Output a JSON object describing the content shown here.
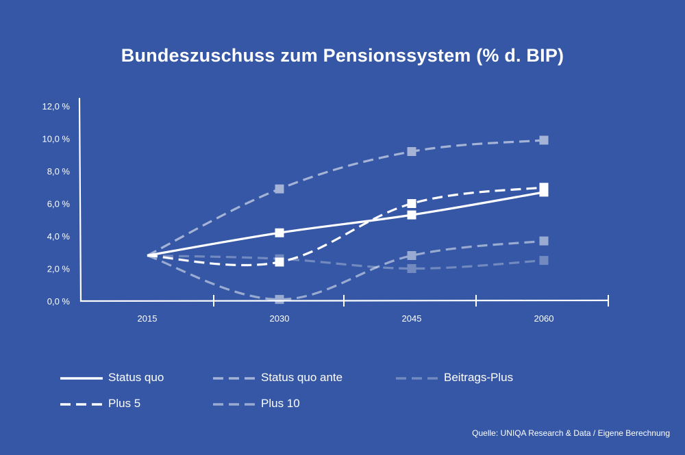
{
  "chart_data": {
    "type": "line",
    "title": "Bundeszuschuss zum Pensionssystem (% d. BIP)",
    "xlabel": "",
    "ylabel": "",
    "x": [
      "2015",
      "2030",
      "2045",
      "2060"
    ],
    "y_ticks": [
      "0,0 %",
      "2,0 %",
      "4,0 %",
      "6,0 %",
      "8,0 %",
      "10,0 %",
      "12,0 %"
    ],
    "ylim": [
      0,
      12
    ],
    "grid": false,
    "legend_position": "bottom",
    "series": [
      {
        "name": "Status quo",
        "values": [
          2.8,
          4.2,
          5.3,
          6.7
        ],
        "color": "#ffffff",
        "opacity": 1.0,
        "dash": "solid"
      },
      {
        "name": "Status quo ante",
        "values": [
          2.8,
          6.9,
          9.2,
          9.9
        ],
        "color": "#ffffff",
        "opacity": 0.55,
        "dash": "dashed"
      },
      {
        "name": "Beitrags-Plus",
        "values": [
          2.8,
          2.6,
          2.0,
          2.5
        ],
        "color": "#ffffff",
        "opacity": 0.3,
        "dash": "dashed"
      },
      {
        "name": "Plus 5",
        "values": [
          2.8,
          2.4,
          6.0,
          7.0
        ],
        "color": "#ffffff",
        "opacity": 1.0,
        "dash": "dashed"
      },
      {
        "name": "Plus 10",
        "values": [
          2.8,
          0.1,
          2.8,
          3.7
        ],
        "color": "#ffffff",
        "opacity": 0.5,
        "dash": "dashed"
      }
    ]
  },
  "source": "Quelle: UNIQA Research & Data / Eigene Berechnung"
}
